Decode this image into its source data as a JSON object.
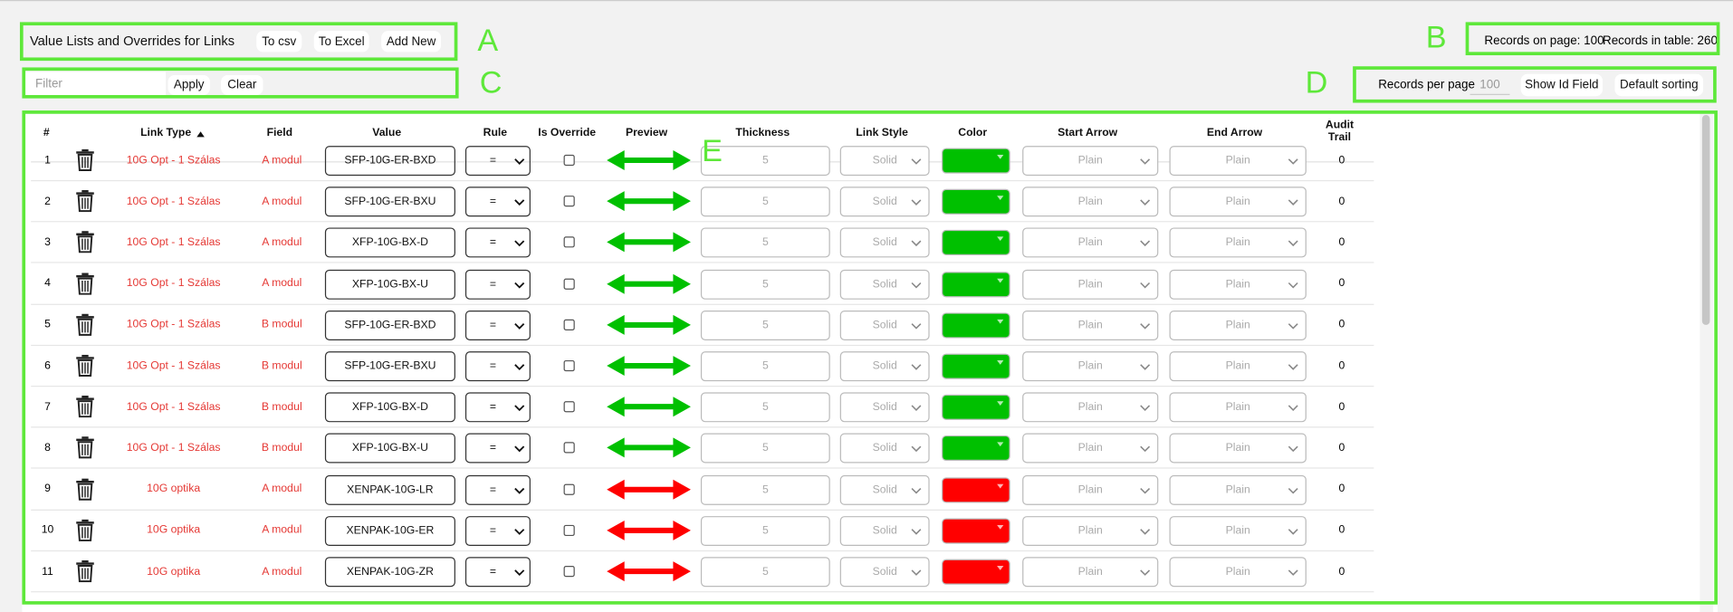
{
  "header": {
    "title": "Value Lists and Overrides for Links",
    "buttons": [
      "To csv",
      "To Excel",
      "Add New"
    ],
    "records_on_page": "Records on page: 100",
    "records_in_table": "Records in table: 260"
  },
  "filter": {
    "placeholder": "Filter",
    "apply": "Apply",
    "clear": "Clear"
  },
  "paging": {
    "records_per_page_label": "Records per page",
    "records_per_page_value": "100",
    "show_id_field": "Show Id Field",
    "default_sorting": "Default sorting"
  },
  "annotations": [
    "A",
    "B",
    "C",
    "D",
    "E"
  ],
  "table": {
    "headers": [
      "#",
      "Link Type",
      "Field",
      "Value",
      "Rule",
      "Is Override",
      "Preview",
      "Thickness",
      "Link Style",
      "Color",
      "Start Arrow",
      "End Arrow",
      "Audit Trail"
    ],
    "rows": [
      {
        "num": 1,
        "link_type": "10G Opt - 1 Szálas",
        "field": "A modul",
        "value": "SFP-10G-ER-BXD",
        "rule": "=",
        "override": false,
        "thickness": 5,
        "link_style": "Solid",
        "color": "#00c000",
        "start_arrow": "Plain",
        "end_arrow": "Plain",
        "audit_trail": 0
      },
      {
        "num": 2,
        "link_type": "10G Opt - 1 Szálas",
        "field": "A modul",
        "value": "SFP-10G-ER-BXU",
        "rule": "=",
        "override": false,
        "thickness": 5,
        "link_style": "Solid",
        "color": "#00c000",
        "start_arrow": "Plain",
        "end_arrow": "Plain",
        "audit_trail": 0
      },
      {
        "num": 3,
        "link_type": "10G Opt - 1 Szálas",
        "field": "A modul",
        "value": "XFP-10G-BX-D",
        "rule": "=",
        "override": false,
        "thickness": 5,
        "link_style": "Solid",
        "color": "#00c000",
        "start_arrow": "Plain",
        "end_arrow": "Plain",
        "audit_trail": 0
      },
      {
        "num": 4,
        "link_type": "10G Opt - 1 Szálas",
        "field": "A modul",
        "value": "XFP-10G-BX-U",
        "rule": "=",
        "override": false,
        "thickness": 5,
        "link_style": "Solid",
        "color": "#00c000",
        "start_arrow": "Plain",
        "end_arrow": "Plain",
        "audit_trail": 0
      },
      {
        "num": 5,
        "link_type": "10G Opt - 1 Szálas",
        "field": "B modul",
        "value": "SFP-10G-ER-BXD",
        "rule": "=",
        "override": false,
        "thickness": 5,
        "link_style": "Solid",
        "color": "#00c000",
        "start_arrow": "Plain",
        "end_arrow": "Plain",
        "audit_trail": 0
      },
      {
        "num": 6,
        "link_type": "10G Opt - 1 Szálas",
        "field": "B modul",
        "value": "SFP-10G-ER-BXU",
        "rule": "=",
        "override": false,
        "thickness": 5,
        "link_style": "Solid",
        "color": "#00c000",
        "start_arrow": "Plain",
        "end_arrow": "Plain",
        "audit_trail": 0
      },
      {
        "num": 7,
        "link_type": "10G Opt - 1 Szálas",
        "field": "B modul",
        "value": "XFP-10G-BX-D",
        "rule": "=",
        "override": false,
        "thickness": 5,
        "link_style": "Solid",
        "color": "#00c000",
        "start_arrow": "Plain",
        "end_arrow": "Plain",
        "audit_trail": 0
      },
      {
        "num": 8,
        "link_type": "10G Opt - 1 Szálas",
        "field": "B modul",
        "value": "XFP-10G-BX-U",
        "rule": "=",
        "override": false,
        "thickness": 5,
        "link_style": "Solid",
        "color": "#00c000",
        "start_arrow": "Plain",
        "end_arrow": "Plain",
        "audit_trail": 0
      },
      {
        "num": 9,
        "link_type": "10G optika",
        "field": "A modul",
        "value": "XENPAK-10G-LR",
        "rule": "=",
        "override": false,
        "thickness": 5,
        "link_style": "Solid",
        "color": "#ff0000",
        "start_arrow": "Plain",
        "end_arrow": "Plain",
        "audit_trail": 0
      },
      {
        "num": 10,
        "link_type": "10G optika",
        "field": "A modul",
        "value": "XENPAK-10G-ER",
        "rule": "=",
        "override": false,
        "thickness": 5,
        "link_style": "Solid",
        "color": "#ff0000",
        "start_arrow": "Plain",
        "end_arrow": "Plain",
        "audit_trail": 0
      },
      {
        "num": 11,
        "link_type": "10G optika",
        "field": "A modul",
        "value": "XENPAK-10G-ZR",
        "rule": "=",
        "override": false,
        "thickness": 5,
        "link_style": "Solid",
        "color": "#ff0000",
        "start_arrow": "Plain",
        "end_arrow": "Plain",
        "audit_trail": 0
      }
    ]
  }
}
